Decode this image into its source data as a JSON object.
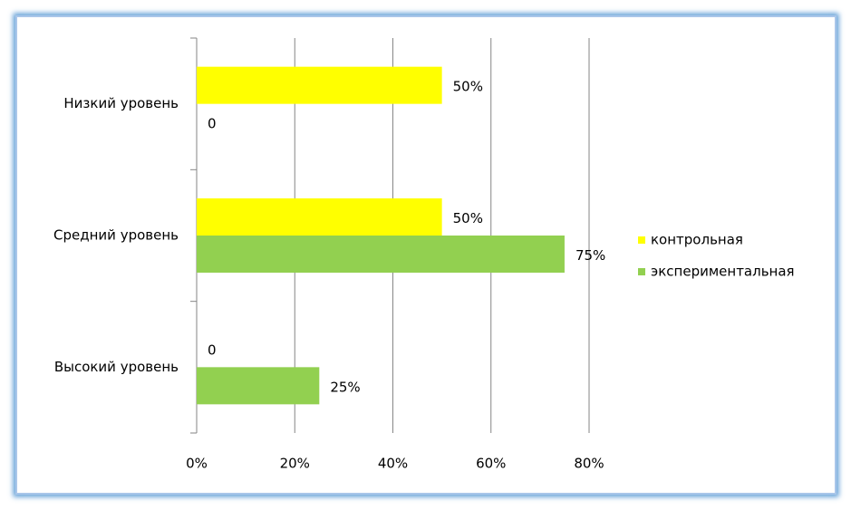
{
  "chart_data": {
    "type": "hbar",
    "categories": [
      "Низкий уровень",
      "Средний уровень",
      "Высокий уровень"
    ],
    "series": [
      {
        "name": "контрольная",
        "color": "#ffff00",
        "values": [
          50,
          50,
          0
        ],
        "value_labels": [
          "50%",
          "50%",
          "0"
        ]
      },
      {
        "name": "экспериментальная",
        "color": "#92d050",
        "values": [
          0,
          75,
          25
        ],
        "value_labels": [
          "0",
          "75%",
          "25%"
        ]
      }
    ],
    "xlim": [
      0,
      80
    ],
    "xticks": [
      {
        "value": 0,
        "label": "0%"
      },
      {
        "value": 20,
        "label": "20%"
      },
      {
        "value": 40,
        "label": "40%"
      },
      {
        "value": 60,
        "label": "60%"
      },
      {
        "value": 80,
        "label": "80%"
      }
    ],
    "grid": true,
    "legend": "right"
  }
}
